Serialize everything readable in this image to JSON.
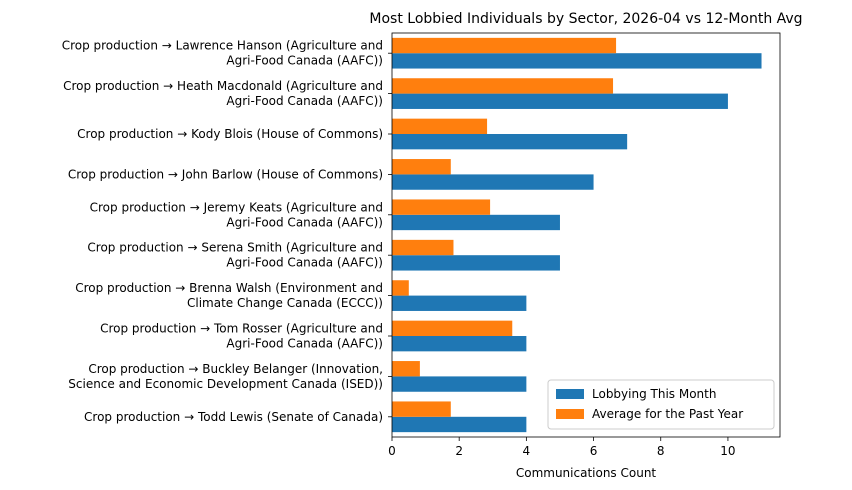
{
  "chart_data": {
    "type": "bar",
    "orientation": "horizontal",
    "title": "Most Lobbied Individuals by Sector, 2026-04 vs 12-Month Avg",
    "xlabel": "Communications Count",
    "ylabel": "",
    "xlim": [
      0,
      11.55
    ],
    "xticks": [
      0,
      2,
      4,
      6,
      8,
      10
    ],
    "grid": false,
    "legend_position": "lower-right",
    "categories": [
      [
        "Crop production → Lawrence Hanson (Agriculture and",
        "Agri-Food Canada (AAFC))"
      ],
      [
        "Crop production → Heath Macdonald (Agriculture and",
        "Agri-Food Canada (AAFC))"
      ],
      [
        "Crop production → Kody Blois (House of Commons)"
      ],
      [
        "Crop production → John Barlow (House of Commons)"
      ],
      [
        "Crop production → Jeremy Keats (Agriculture and",
        "Agri-Food Canada (AAFC))"
      ],
      [
        "Crop production → Serena Smith (Agriculture and",
        "Agri-Food Canada (AAFC))"
      ],
      [
        "Crop production → Brenna Walsh (Environment and",
        "Climate Change Canada (ECCC))"
      ],
      [
        "Crop production → Tom Rosser (Agriculture and",
        "Agri-Food Canada (AAFC))"
      ],
      [
        "Crop production → Buckley Belanger (Innovation,",
        "Science and Economic Development Canada (ISED))"
      ],
      [
        "Crop production → Todd Lewis (Senate of Canada)"
      ]
    ],
    "series": [
      {
        "name": "Lobbying This Month",
        "color": "#1f77b4",
        "values": [
          11,
          10,
          7,
          6,
          5,
          5,
          4,
          4,
          4,
          4
        ]
      },
      {
        "name": "Average for the Past Year",
        "color": "#ff7f0e",
        "values": [
          6.67,
          6.58,
          2.83,
          1.75,
          2.92,
          1.83,
          0.5,
          3.58,
          0.83,
          1.75
        ]
      }
    ]
  }
}
